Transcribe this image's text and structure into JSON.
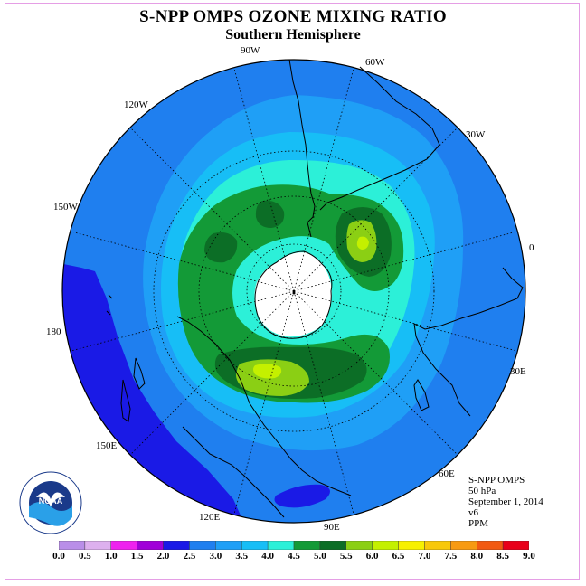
{
  "title": "S-NPP OMPS OZONE MIXING RATIO",
  "subtitle": "Southern Hemisphere",
  "longitude_labels": {
    "w90": "90W",
    "w60": "60W",
    "w30": "30W",
    "w120": "120W",
    "w150": "150W",
    "zero": "0",
    "d180": "180",
    "e30": "30E",
    "e60": "60E",
    "e90": "90E",
    "e120": "120E",
    "e150": "150E"
  },
  "info": {
    "instrument": "S-NPP OMPS",
    "pressure": "50 hPa",
    "date": "September 1, 2014",
    "version": "v6",
    "units": "PPM"
  },
  "logo_text": "NOAA",
  "colorbar": {
    "ticks": [
      "0.0",
      "0.5",
      "1.0",
      "1.5",
      "2.0",
      "2.5",
      "3.0",
      "3.5",
      "4.0",
      "4.5",
      "5.0",
      "5.5",
      "6.0",
      "6.5",
      "7.0",
      "7.5",
      "8.0",
      "8.5",
      "9.0"
    ],
    "colors": [
      "#b98ee8",
      "#ddb0ee",
      "#ee22ee",
      "#a000d8",
      "#1a1ae6",
      "#1f7fef",
      "#1f9ff6",
      "#17bef6",
      "#2cf0d8",
      "#139a37",
      "#0c6e26",
      "#8bcf14",
      "#c4f000",
      "#f7f000",
      "#f8c80a",
      "#f79a12",
      "#f25a12",
      "#e8001a",
      "#8b5a3c"
    ]
  },
  "map_colors": {
    "ozone_1_5_2_0": "#1a1ae6",
    "ozone_2_0_2_5": "#1f7fef",
    "ozone_2_5_3_0": "#1f9ff6",
    "ozone_3_0_3_5": "#17bef6",
    "ozone_3_5_4_0": "#2cf0d8",
    "ozone_4_0_4_5": "#139a37",
    "ozone_4_5_5_0": "#0c6e26",
    "ozone_5_0_5_5": "#8bcf14",
    "ozone_5_5_6_0": "#c4f000",
    "polar_night_no_data": "#ffffff"
  }
}
